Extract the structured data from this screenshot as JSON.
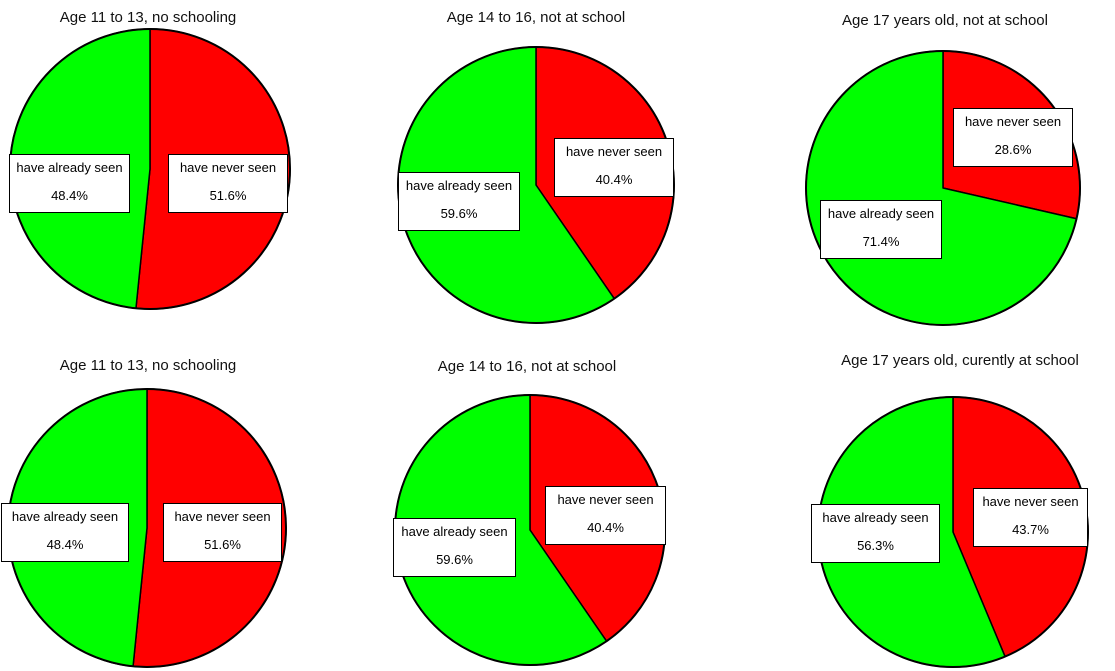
{
  "chart_data": [
    {
      "type": "pie",
      "title": "Age 11 to 13, no schooling",
      "slices": [
        {
          "label": "have never seen",
          "value": 51.6,
          "value_text": "51.6%",
          "color": "#ff0000"
        },
        {
          "label": "have already seen",
          "value": 48.4,
          "value_text": "48.4%",
          "color": "#00ff00"
        }
      ]
    },
    {
      "type": "pie",
      "title": "Age 14 to 16, not at school",
      "slices": [
        {
          "label": "have never seen",
          "value": 40.4,
          "value_text": "40.4%",
          "color": "#ff0000"
        },
        {
          "label": "have already seen",
          "value": 59.6,
          "value_text": "59.6%",
          "color": "#00ff00"
        }
      ]
    },
    {
      "type": "pie",
      "title": "Age 17 years old, not at school",
      "slices": [
        {
          "label": "have never seen",
          "value": 28.6,
          "value_text": "28.6%",
          "color": "#ff0000"
        },
        {
          "label": "have already seen",
          "value": 71.4,
          "value_text": "71.4%",
          "color": "#00ff00"
        }
      ]
    },
    {
      "type": "pie",
      "title": "Age 11 to 13, no schooling",
      "slices": [
        {
          "label": "have never seen",
          "value": 51.6,
          "value_text": "51.6%",
          "color": "#ff0000"
        },
        {
          "label": "have already seen",
          "value": 48.4,
          "value_text": "48.4%",
          "color": "#00ff00"
        }
      ]
    },
    {
      "type": "pie",
      "title": "Age 14 to 16, not at school",
      "slices": [
        {
          "label": "have never seen",
          "value": 40.4,
          "value_text": "40.4%",
          "color": "#ff0000"
        },
        {
          "label": "have already seen",
          "value": 59.6,
          "value_text": "59.6%",
          "color": "#00ff00"
        }
      ]
    },
    {
      "type": "pie",
      "title": "Age 17 years old, curently at school",
      "slices": [
        {
          "label": "have never seen",
          "value": 43.7,
          "value_text": "43.7%",
          "color": "#ff0000"
        },
        {
          "label": "have already seen",
          "value": 56.3,
          "value_text": "56.3%",
          "color": "#00ff00"
        }
      ]
    }
  ]
}
